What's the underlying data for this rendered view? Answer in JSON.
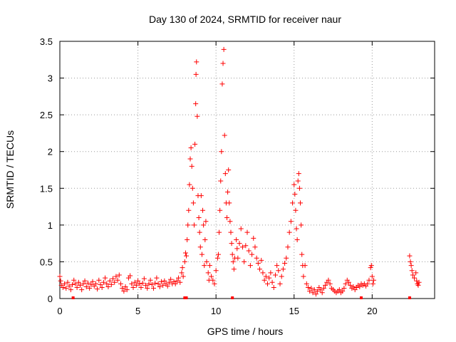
{
  "chart_data": {
    "type": "scatter",
    "title": "Day 130 of 2024, SRMTID for receiver naur",
    "xlabel": "GPS time / hours",
    "ylabel": "SRMTID / TECUs",
    "xlim": [
      0,
      24
    ],
    "ylim": [
      0,
      3.5
    ],
    "xticks": [
      0,
      5,
      10,
      15,
      20
    ],
    "xtick_labels": [
      "0",
      "5",
      "10",
      "15",
      "20"
    ],
    "yticks": [
      0,
      0.5,
      1,
      1.5,
      2,
      2.5,
      3,
      3.5
    ],
    "ytick_labels": [
      "0",
      "0.5",
      "1",
      "1.5",
      "2",
      "2.5",
      "3",
      "3.5"
    ],
    "grid": true,
    "marker": "+",
    "color": "#ff0000",
    "series": [
      {
        "name": "SRMTID",
        "points": [
          [
            0.0,
            0.3
          ],
          [
            0.05,
            0.24
          ],
          [
            0.1,
            0.18
          ],
          [
            0.2,
            0.15
          ],
          [
            0.3,
            0.2
          ],
          [
            0.4,
            0.14
          ],
          [
            0.5,
            0.22
          ],
          [
            0.6,
            0.17
          ],
          [
            0.7,
            0.12
          ],
          [
            0.8,
            0.19
          ],
          [
            0.9,
            0.25
          ],
          [
            1.0,
            0.2
          ],
          [
            1.1,
            0.15
          ],
          [
            1.2,
            0.22
          ],
          [
            1.3,
            0.18
          ],
          [
            1.4,
            0.12
          ],
          [
            1.5,
            0.2
          ],
          [
            1.6,
            0.24
          ],
          [
            1.7,
            0.16
          ],
          [
            1.8,
            0.21
          ],
          [
            1.9,
            0.14
          ],
          [
            2.0,
            0.19
          ],
          [
            2.1,
            0.23
          ],
          [
            2.2,
            0.17
          ],
          [
            2.3,
            0.2
          ],
          [
            2.4,
            0.13
          ],
          [
            2.5,
            0.25
          ],
          [
            2.6,
            0.19
          ],
          [
            2.7,
            0.15
          ],
          [
            2.8,
            0.22
          ],
          [
            2.9,
            0.28
          ],
          [
            3.0,
            0.2
          ],
          [
            3.1,
            0.16
          ],
          [
            3.2,
            0.24
          ],
          [
            3.3,
            0.19
          ],
          [
            3.4,
            0.27
          ],
          [
            3.5,
            0.22
          ],
          [
            3.6,
            0.3
          ],
          [
            3.7,
            0.25
          ],
          [
            3.8,
            0.32
          ],
          [
            3.9,
            0.2
          ],
          [
            4.0,
            0.14
          ],
          [
            4.1,
            0.1
          ],
          [
            4.2,
            0.16
          ],
          [
            4.3,
            0.12
          ],
          [
            4.4,
            0.28
          ],
          [
            4.5,
            0.31
          ],
          [
            4.6,
            0.2
          ],
          [
            4.7,
            0.15
          ],
          [
            4.8,
            0.22
          ],
          [
            4.9,
            0.18
          ],
          [
            5.0,
            0.24
          ],
          [
            5.1,
            0.2
          ],
          [
            5.2,
            0.15
          ],
          [
            5.3,
            0.21
          ],
          [
            5.4,
            0.27
          ],
          [
            5.5,
            0.18
          ],
          [
            5.6,
            0.14
          ],
          [
            5.7,
            0.2
          ],
          [
            5.8,
            0.25
          ],
          [
            5.9,
            0.19
          ],
          [
            6.0,
            0.14
          ],
          [
            6.1,
            0.21
          ],
          [
            6.2,
            0.28
          ],
          [
            6.3,
            0.2
          ],
          [
            6.4,
            0.16
          ],
          [
            6.5,
            0.23
          ],
          [
            6.6,
            0.18
          ],
          [
            6.7,
            0.24
          ],
          [
            6.8,
            0.2
          ],
          [
            6.9,
            0.17
          ],
          [
            7.0,
            0.22
          ],
          [
            7.1,
            0.26
          ],
          [
            7.2,
            0.2
          ],
          [
            7.3,
            0.23
          ],
          [
            7.4,
            0.2
          ],
          [
            7.5,
            0.24
          ],
          [
            7.6,
            0.28
          ],
          [
            7.7,
            0.22
          ],
          [
            7.8,
            0.35
          ],
          [
            7.85,
            0.42
          ],
          [
            7.9,
            0.3
          ],
          [
            8.0,
            0.5
          ],
          [
            8.05,
            0.62
          ],
          [
            8.1,
            0.58
          ],
          [
            8.15,
            0.8
          ],
          [
            8.2,
            1.0
          ],
          [
            8.25,
            1.2
          ],
          [
            8.3,
            1.55
          ],
          [
            8.35,
            1.9
          ],
          [
            8.4,
            2.05
          ],
          [
            8.45,
            1.8
          ],
          [
            8.5,
            1.5
          ],
          [
            8.55,
            1.3
          ],
          [
            8.6,
            1.0
          ],
          [
            8.65,
            2.1
          ],
          [
            8.7,
            2.65
          ],
          [
            8.72,
            3.05
          ],
          [
            8.75,
            3.22
          ],
          [
            8.8,
            2.48
          ],
          [
            8.85,
            1.4
          ],
          [
            8.9,
            1.1
          ],
          [
            8.95,
            0.9
          ],
          [
            9.0,
            0.7
          ],
          [
            9.05,
            1.4
          ],
          [
            9.1,
            0.6
          ],
          [
            9.15,
            1.2
          ],
          [
            9.2,
            1.0
          ],
          [
            9.25,
            0.45
          ],
          [
            9.3,
            0.8
          ],
          [
            9.35,
            1.05
          ],
          [
            9.4,
            0.5
          ],
          [
            9.5,
            0.35
          ],
          [
            9.55,
            0.25
          ],
          [
            9.6,
            0.45
          ],
          [
            9.7,
            0.3
          ],
          [
            9.8,
            0.25
          ],
          [
            9.9,
            0.2
          ],
          [
            10.0,
            0.38
          ],
          [
            10.1,
            0.55
          ],
          [
            10.15,
            0.6
          ],
          [
            10.2,
            0.9
          ],
          [
            10.25,
            1.2
          ],
          [
            10.3,
            1.6
          ],
          [
            10.35,
            2.0
          ],
          [
            10.4,
            2.92
          ],
          [
            10.45,
            3.2
          ],
          [
            10.5,
            3.39
          ],
          [
            10.55,
            2.22
          ],
          [
            10.6,
            1.7
          ],
          [
            10.65,
            1.3
          ],
          [
            10.7,
            1.1
          ],
          [
            10.75,
            1.45
          ],
          [
            10.8,
            1.75
          ],
          [
            10.85,
            1.3
          ],
          [
            10.9,
            1.05
          ],
          [
            10.95,
            0.9
          ],
          [
            11.0,
            0.75
          ],
          [
            11.05,
            0.6
          ],
          [
            11.1,
            0.5
          ],
          [
            11.15,
            0.4
          ],
          [
            11.2,
            0.55
          ],
          [
            11.3,
            0.8
          ],
          [
            11.35,
            0.68
          ],
          [
            11.4,
            0.55
          ],
          [
            11.5,
            0.75
          ],
          [
            11.6,
            0.95
          ],
          [
            11.7,
            0.7
          ],
          [
            11.8,
            0.5
          ],
          [
            11.9,
            0.72
          ],
          [
            12.0,
            0.9
          ],
          [
            12.1,
            0.65
          ],
          [
            12.2,
            0.45
          ],
          [
            12.3,
            0.6
          ],
          [
            12.4,
            0.82
          ],
          [
            12.5,
            0.7
          ],
          [
            12.6,
            0.55
          ],
          [
            12.7,
            0.48
          ],
          [
            12.8,
            0.4
          ],
          [
            12.9,
            0.52
          ],
          [
            13.0,
            0.35
          ],
          [
            13.1,
            0.25
          ],
          [
            13.2,
            0.3
          ],
          [
            13.3,
            0.2
          ],
          [
            13.4,
            0.28
          ],
          [
            13.5,
            0.35
          ],
          [
            13.6,
            0.22
          ],
          [
            13.7,
            0.15
          ],
          [
            13.8,
            0.32
          ],
          [
            13.9,
            0.45
          ],
          [
            14.0,
            0.38
          ],
          [
            14.1,
            0.2
          ],
          [
            14.2,
            0.3
          ],
          [
            14.3,
            0.4
          ],
          [
            14.4,
            0.48
          ],
          [
            14.5,
            0.55
          ],
          [
            14.6,
            0.7
          ],
          [
            14.7,
            0.9
          ],
          [
            14.8,
            1.05
          ],
          [
            14.9,
            1.3
          ],
          [
            15.0,
            1.55
          ],
          [
            15.05,
            1.42
          ],
          [
            15.1,
            1.2
          ],
          [
            15.15,
            0.95
          ],
          [
            15.2,
            0.8
          ],
          [
            15.25,
            1.6
          ],
          [
            15.3,
            1.7
          ],
          [
            15.35,
            1.5
          ],
          [
            15.4,
            1.3
          ],
          [
            15.45,
            1.0
          ],
          [
            15.5,
            0.6
          ],
          [
            15.55,
            0.45
          ],
          [
            15.6,
            0.3
          ],
          [
            15.7,
            0.45
          ],
          [
            15.8,
            0.2
          ],
          [
            15.9,
            0.15
          ],
          [
            16.0,
            0.1
          ],
          [
            16.1,
            0.14
          ],
          [
            16.2,
            0.08
          ],
          [
            16.3,
            0.12
          ],
          [
            16.4,
            0.06
          ],
          [
            16.5,
            0.1
          ],
          [
            16.6,
            0.15
          ],
          [
            16.7,
            0.12
          ],
          [
            16.8,
            0.08
          ],
          [
            16.9,
            0.14
          ],
          [
            17.0,
            0.18
          ],
          [
            17.1,
            0.22
          ],
          [
            17.2,
            0.25
          ],
          [
            17.3,
            0.2
          ],
          [
            17.4,
            0.14
          ],
          [
            17.5,
            0.12
          ],
          [
            17.6,
            0.1
          ],
          [
            17.7,
            0.08
          ],
          [
            17.8,
            0.1
          ],
          [
            17.9,
            0.12
          ],
          [
            18.0,
            0.08
          ],
          [
            18.1,
            0.1
          ],
          [
            18.2,
            0.14
          ],
          [
            18.3,
            0.2
          ],
          [
            18.4,
            0.25
          ],
          [
            18.5,
            0.22
          ],
          [
            18.6,
            0.18
          ],
          [
            18.7,
            0.14
          ],
          [
            18.8,
            0.16
          ],
          [
            18.9,
            0.12
          ],
          [
            19.0,
            0.15
          ],
          [
            19.1,
            0.18
          ],
          [
            19.2,
            0.16
          ],
          [
            19.3,
            0.2
          ],
          [
            19.4,
            0.18
          ],
          [
            19.5,
            0.2
          ],
          [
            19.6,
            0.17
          ],
          [
            19.7,
            0.2
          ],
          [
            19.8,
            0.25
          ],
          [
            19.9,
            0.42
          ],
          [
            19.95,
            0.45
          ],
          [
            20.0,
            0.3
          ],
          [
            20.05,
            0.2
          ],
          [
            20.1,
            0.25
          ],
          [
            22.4,
            0.58
          ],
          [
            22.45,
            0.5
          ],
          [
            22.5,
            0.45
          ],
          [
            22.55,
            0.38
          ],
          [
            22.6,
            0.32
          ],
          [
            22.7,
            0.28
          ],
          [
            22.8,
            0.35
          ],
          [
            22.85,
            0.24
          ],
          [
            22.9,
            0.2
          ],
          [
            22.95,
            0.18
          ],
          [
            23.0,
            0.22
          ]
        ]
      }
    ],
    "baseline_markers_x": [
      0.85,
      8.0,
      8.1,
      11.05,
      19.3,
      22.4
    ]
  }
}
